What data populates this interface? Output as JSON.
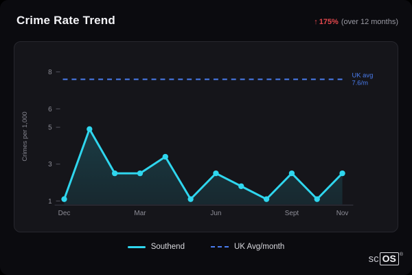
{
  "header": {
    "title": "Crime Rate Trend",
    "change_arrow": "↑",
    "change_value": "175%",
    "change_caption": "(over 12 months)"
  },
  "colors": {
    "accent_cyan": "#2fd6ee",
    "accent_blue": "#4a7df0",
    "negative_red": "#e5484d",
    "panel_bg": "#15151a",
    "page_bg": "#0b0b0f"
  },
  "chart_data": {
    "type": "line",
    "title": "",
    "xlabel": "",
    "ylabel": "Crimes per 1,000",
    "ylim": [
      1,
      8
    ],
    "y_ticks": [
      8,
      6,
      5,
      3,
      1
    ],
    "num_points": 12,
    "x_tick_labels": [
      {
        "index": 0,
        "label": "Dec"
      },
      {
        "index": 3,
        "label": "Mar"
      },
      {
        "index": 6,
        "label": "Jun"
      },
      {
        "index": 9,
        "label": "Sept"
      },
      {
        "index": 11,
        "label": "Nov"
      }
    ],
    "series": [
      {
        "name": "Southend",
        "type": "line",
        "style": "solid",
        "color": "#2fd6ee",
        "area_fill": true,
        "values": [
          1.1,
          4.9,
          2.5,
          2.5,
          3.4,
          1.1,
          2.5,
          1.8,
          1.1,
          2.5,
          1.1,
          2.5
        ]
      },
      {
        "name": "UK Avg/month",
        "type": "reference-line",
        "style": "dashed",
        "color": "#4a7df0",
        "value": 7.6,
        "annotation": [
          "UK avg",
          "7.6/m"
        ]
      }
    ],
    "legend": [
      {
        "label": "Southend",
        "style": "solid",
        "color": "#2fd6ee"
      },
      {
        "label": "UK Avg/month",
        "style": "dashed",
        "color": "#4a7df0"
      }
    ],
    "grid": false,
    "legend_position": "bottom-center"
  },
  "watermark": {
    "prefix": "sc",
    "boxed": "OS",
    "reg": "®"
  }
}
